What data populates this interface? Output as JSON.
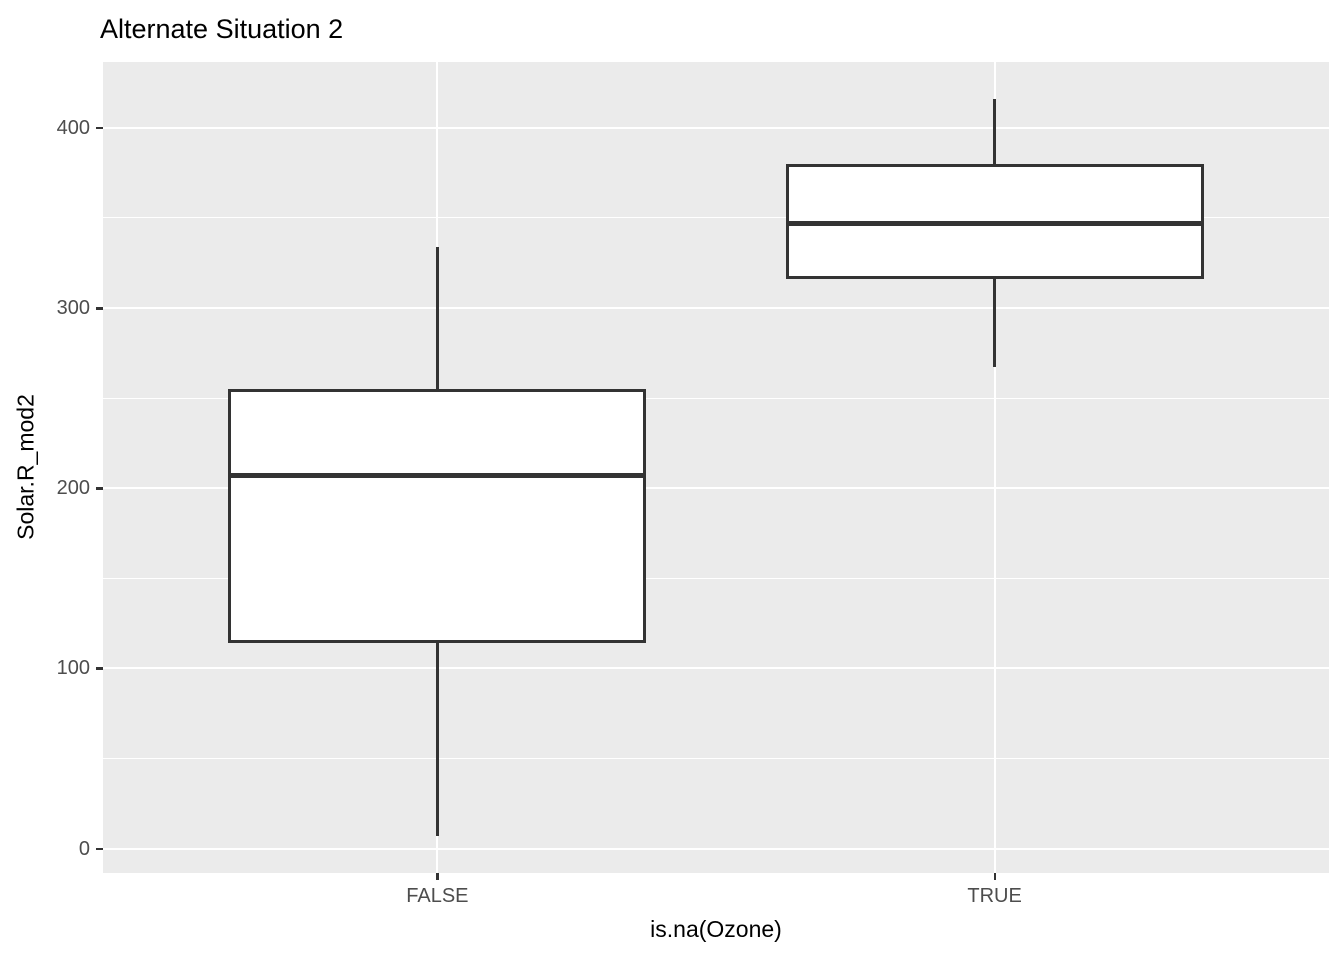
{
  "chart_data": {
    "type": "boxplot",
    "title": "Alternate Situation 2",
    "xlabel": "is.na(Ozone)",
    "ylabel": "Solar.R_mod2",
    "categories": [
      "FALSE",
      "TRUE"
    ],
    "y_ticks": [
      0,
      100,
      200,
      300,
      400
    ],
    "y_minor_ticks": [
      50,
      150,
      250,
      350
    ],
    "ylim": [
      -13.5,
      436.5
    ],
    "box_width_units": 0.75,
    "boxes": [
      {
        "category": "FALSE",
        "whisker_low": 7,
        "q1": 114,
        "median": 207,
        "q3": 255,
        "whisker_high": 334
      },
      {
        "category": "TRUE",
        "whisker_low": 267,
        "q1": 316,
        "median": 347,
        "q3": 380,
        "whisker_high": 416
      }
    ],
    "legend": "none",
    "grid": "on"
  },
  "colors": {
    "figure_background": "#FFFFFF",
    "panel_background": "#EBEBEB",
    "gridline": "#FFFFFF",
    "box_fill": "#FFFFFF",
    "box_border": "#333333",
    "median_line": "#333333",
    "tick_mark": "#333333",
    "tick_label": "#4D4D4D",
    "title_text": "#000000",
    "axis_title_text": "#000000"
  }
}
